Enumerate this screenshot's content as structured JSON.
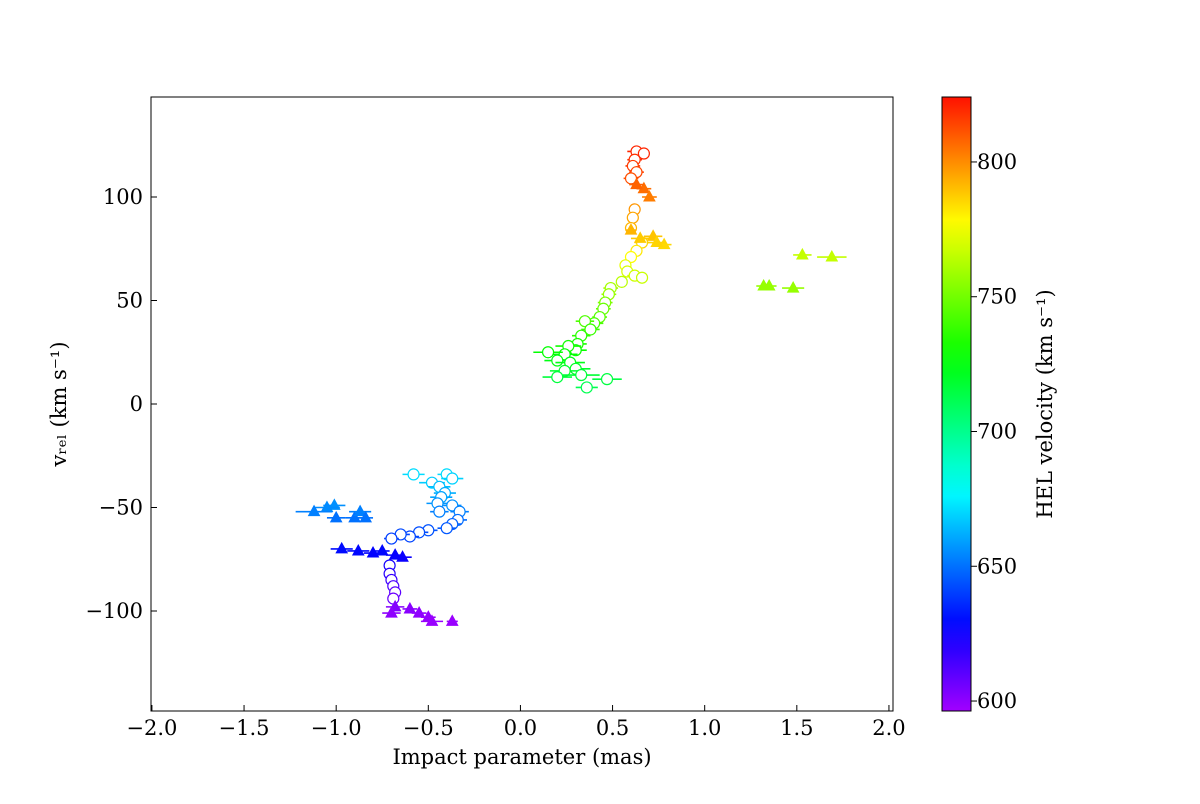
{
  "chart_data": {
    "type": "scatter",
    "xlabel": "Impact parameter (mas)",
    "ylabel": "vᵣₑₗ (km s⁻¹)",
    "xlim": [
      -2.005,
      2.022
    ],
    "ylim": [
      -148.3,
      148.3
    ],
    "xticks": [
      {
        "value": -2.0,
        "label": "−2.0"
      },
      {
        "value": -1.5,
        "label": "−1.5"
      },
      {
        "value": -1.0,
        "label": "−1.0"
      },
      {
        "value": -0.5,
        "label": "−0.5"
      },
      {
        "value": 0.0,
        "label": "0.0"
      },
      0.5,
      {
        "value": 1.0,
        "label": "1.0"
      },
      1.5,
      {
        "value": 2.0,
        "label": "2.0"
      }
    ],
    "yticks": [
      {
        "value": -100,
        "label": "−100"
      },
      {
        "value": -50,
        "label": "−50"
      },
      0,
      50,
      100
    ],
    "colorbar": {
      "label": "HEL velocity (km s⁻¹)",
      "colormap": "gist_rainbow_r",
      "clim": [
        596.3,
        824.1
      ],
      "ticks": [
        600,
        650,
        700,
        750,
        800
      ]
    },
    "series": [
      {
        "marker": "circle",
        "filled": false,
        "x": [
          0.63,
          0.62,
          0.61,
          0.63,
          0.6,
          0.67,
          0.62,
          0.61,
          0.6,
          0.66,
          0.63,
          0.6,
          0.57,
          0.58,
          0.62,
          0.66,
          0.55,
          0.49,
          0.48,
          0.46,
          0.45,
          0.43,
          0.4,
          0.35,
          0.38,
          0.33,
          0.31,
          0.3,
          0.26,
          0.24,
          0.2,
          0.15,
          0.27,
          0.3,
          0.24,
          0.2,
          0.33,
          0.47,
          0.36,
          -0.58,
          -0.48,
          -0.4,
          -0.37,
          -0.44,
          -0.41,
          -0.43,
          -0.45,
          -0.44,
          -0.37,
          -0.33,
          -0.34,
          -0.37,
          -0.4,
          -0.5,
          -0.55,
          -0.6,
          -0.65,
          -0.7,
          -0.71,
          -0.71,
          -0.7,
          -0.69,
          -0.68,
          -0.69
        ],
        "y": [
          122,
          118,
          115,
          112,
          109,
          121,
          94,
          90,
          85,
          78,
          74,
          71,
          67,
          64,
          62,
          61,
          59,
          56,
          53,
          49,
          46,
          42,
          39,
          40,
          36,
          33,
          29,
          26,
          28,
          24,
          21,
          25,
          20,
          17,
          16,
          13,
          14,
          12,
          8,
          -34,
          -38,
          -34,
          -36,
          -40,
          -43,
          -45,
          -48,
          -52,
          -49,
          -52,
          -56,
          -58,
          -60,
          -61,
          -62,
          -64,
          -63,
          -65,
          -78,
          -82,
          -85,
          -88,
          -91,
          -94
        ],
        "c": [
          820,
          818,
          816,
          814,
          812,
          820,
          798,
          795,
          792,
          786,
          782,
          778,
          773,
          770,
          768,
          767,
          764,
          760,
          757,
          752,
          748,
          745,
          742,
          743,
          739,
          736,
          732,
          729,
          731,
          727,
          724,
          728,
          723,
          720,
          719,
          716,
          717,
          715,
          712,
          671,
          668,
          671,
          669,
          665,
          662,
          660,
          657,
          653,
          656,
          653,
          649,
          647,
          645,
          644,
          643,
          641,
          642,
          640,
          624,
          620,
          617,
          613,
          610,
          607
        ],
        "xerr": [
          0.05,
          0.04,
          0.04,
          0.04,
          0.04,
          0.03,
          0.03,
          0.03,
          0.03,
          0.04,
          0.03,
          0.03,
          0.03,
          0.03,
          0.04,
          0.03,
          0.03,
          0.04,
          0.04,
          0.04,
          0.04,
          0.04,
          0.05,
          0.05,
          0.05,
          0.05,
          0.05,
          0.06,
          0.07,
          0.07,
          0.07,
          0.08,
          0.08,
          0.08,
          0.08,
          0.08,
          0.1,
          0.08,
          0.06,
          0.06,
          0.07,
          0.05,
          0.06,
          0.06,
          0.06,
          0.06,
          0.06,
          0.05,
          0.05,
          0.05,
          0.05,
          0.05,
          0.05,
          0.05,
          0.05,
          0.05,
          0.05,
          0.04,
          0.03,
          0.03,
          0.03,
          0.03,
          0.03,
          0.03
        ]
      },
      {
        "marker": "triangle",
        "filled": true,
        "x": [
          0.67,
          0.63,
          0.7,
          0.6,
          0.65,
          0.72,
          0.78,
          0.74,
          1.53,
          1.69,
          1.32,
          1.35,
          1.48,
          -1.01,
          -1.05,
          -1.12,
          -1.0,
          -0.9,
          -0.87,
          -0.84,
          -0.97,
          -0.88,
          -0.8,
          -0.75,
          -0.68,
          -0.64,
          -0.68,
          -0.7,
          -0.6,
          -0.55,
          -0.5,
          -0.48,
          -0.37
        ],
        "y": [
          104,
          106,
          100,
          84,
          80,
          81,
          77,
          78,
          72,
          71,
          57,
          57,
          56,
          -49,
          -50,
          -52,
          -55,
          -55,
          -52,
          -55,
          -70,
          -71,
          -72,
          -71,
          -73,
          -74,
          -98,
          -101,
          -99,
          -101,
          -103,
          -105,
          -105
        ],
        "c": [
          806,
          808,
          803,
          792,
          788,
          789,
          785,
          786,
          766,
          766,
          757,
          757,
          757,
          656,
          655,
          653,
          650,
          650,
          653,
          650,
          630,
          629,
          628,
          629,
          627,
          626,
          602,
          600,
          601,
          600,
          599,
          598,
          598
        ],
        "xerr": [
          0.04,
          0.04,
          0.04,
          0.03,
          0.05,
          0.05,
          0.04,
          0.05,
          0.05,
          0.08,
          0.04,
          0.04,
          0.06,
          0.06,
          0.07,
          0.1,
          0.05,
          0.05,
          0.06,
          0.04,
          0.06,
          0.06,
          0.05,
          0.04,
          0.05,
          0.05,
          0.05,
          0.05,
          0.04,
          0.04,
          0.04,
          0.06,
          0.03
        ]
      }
    ]
  }
}
